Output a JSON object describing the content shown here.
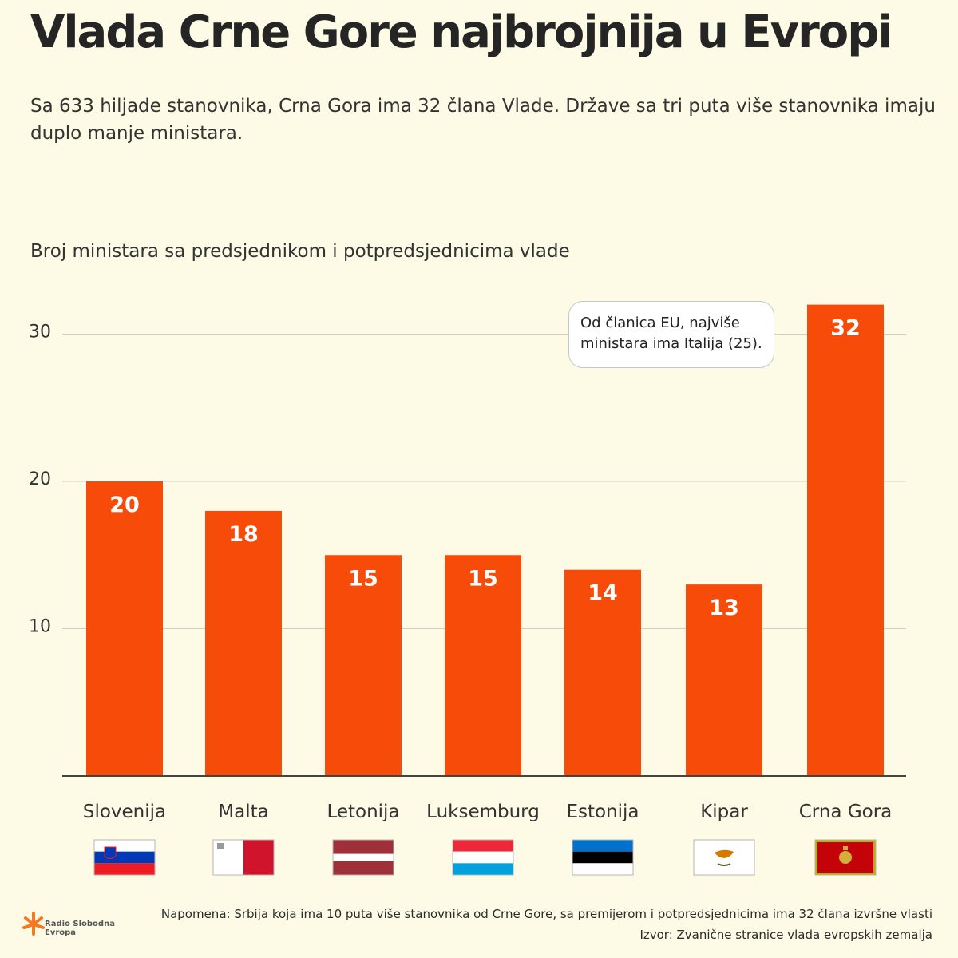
{
  "header": {
    "title": "Vlada Crne Gore najbrojnija u Evropi",
    "subtitle": "Sa 633 hiljade stanovnika, Crna Gora ima 32 člana Vlade. Države sa tri puta više stanovnika imaju duplo manje ministara."
  },
  "callout": {
    "line1": "Od članica EU, najviše",
    "line2": "ministara ima Italija (25)."
  },
  "chart_data": {
    "type": "bar",
    "title": "Broj ministara sa predsjednikom i potpredsjednicima vlade",
    "xlabel": "",
    "ylabel": "",
    "categories": [
      "Slovenija",
      "Malta",
      "Letonija",
      "Luksemburg",
      "Estonija",
      "Kipar",
      "Crna Gora"
    ],
    "values": [
      20,
      18,
      15,
      15,
      14,
      13,
      32
    ],
    "data_labels": [
      "20",
      "18",
      "15",
      "15",
      "14",
      "13",
      "32"
    ],
    "ylim": [
      0,
      32
    ],
    "yticks": [
      10,
      20,
      30
    ],
    "grid": true,
    "bar_color": "#f74b09",
    "flags": [
      "slovenia-flag-icon",
      "malta-flag-icon",
      "latvia-flag-icon",
      "luxembourg-flag-icon",
      "estonia-flag-icon",
      "cyprus-flag-icon",
      "montenegro-flag-icon"
    ]
  },
  "footer": {
    "note": "Napomena: Srbija koja ima 10 puta više stanovnika od Crne Gore, sa premijerom i potpredsjednicima ima 32 člana izvršne vlasti",
    "source": "Izvor: Zvanične stranice vlada evropskih zemalja",
    "logo_line1": "Radio Slobodna",
    "logo_line2": "Evropa",
    "logo_color": "#f47920"
  }
}
